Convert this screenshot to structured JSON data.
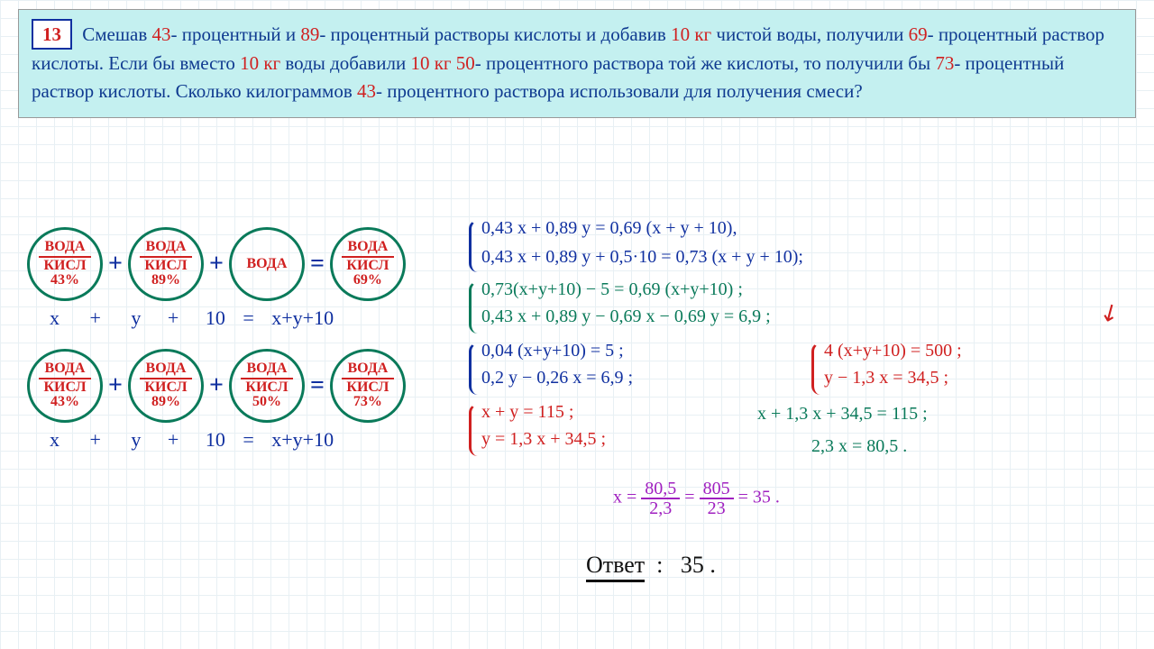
{
  "problem": {
    "number": "13",
    "segments": [
      {
        "t": "Смешав ",
        "c": "blue"
      },
      {
        "t": "43",
        "c": "red"
      },
      {
        "t": "- процентный и ",
        "c": "blue"
      },
      {
        "t": "89",
        "c": "red"
      },
      {
        "t": "- процентный растворы кислоты и добавив ",
        "c": "blue"
      },
      {
        "t": "10 кг",
        "c": "red"
      },
      {
        "t": " чистой  воды,  получили  ",
        "c": "blue"
      },
      {
        "t": "69",
        "c": "red"
      },
      {
        "t": "- процентный раствор кислоты.  Если бы вместо ",
        "c": "blue"
      },
      {
        "t": "10 кг",
        "c": "red"
      },
      {
        "t": " воды добавили  ",
        "c": "blue"
      },
      {
        "t": "10 кг  50",
        "c": "red"
      },
      {
        "t": "- процентного раствора той же кислоты,  то получили бы ",
        "c": "blue"
      },
      {
        "t": "73",
        "c": "red"
      },
      {
        "t": "- процентный раствор кислоты. Сколько килограммов ",
        "c": "blue"
      },
      {
        "t": "43",
        "c": "red"
      },
      {
        "t": "- процентного раствора использовали для получения смеси?",
        "c": "blue"
      }
    ]
  },
  "ovals": {
    "water": "ВОДА",
    "acid": "КИСЛ",
    "p43": "43%",
    "p89": "89%",
    "p50": "50%",
    "p69": "69%",
    "p73": "73%"
  },
  "massLabels": {
    "x": "x",
    "y": "y",
    "ten": "10",
    "sum": "x+y+10",
    "plus": "+",
    "eq": "="
  },
  "equations": {
    "sys1a": "0,43 x + 0,89 y = 0,69 (x + y + 10),",
    "sys1b": "0,43 x + 0,89 y + 0,5·10 = 0,73 (x + y + 10);",
    "sys2a": "0,73(x+y+10) − 5 = 0,69 (x+y+10) ;",
    "sys2b": "0,43 x + 0,89 y − 0,69 x − 0,69 y = 6,9 ;",
    "sys3a": "0,04 (x+y+10) = 5 ;",
    "sys3b": "0,2 y − 0,26 x = 6,9 ;",
    "sys3ra": "4 (x+y+10) = 500 ;",
    "sys3rb": "y − 1,3 x = 34,5 ;",
    "sys4a": "x + y = 115 ;",
    "sys4b": "y = 1,3 x + 34,5 ;",
    "sub1": "x + 1,3 x + 34,5 = 115 ;",
    "sub2": "2,3 x = 80,5 .",
    "final_prefix": "x =",
    "frac1n": "80,5",
    "frac1d": "2,3",
    "frac2n": "805",
    "frac2d": "23",
    "final_suffix": "= 35 ."
  },
  "answer": {
    "label": "Ответ",
    "value": "35 ."
  }
}
